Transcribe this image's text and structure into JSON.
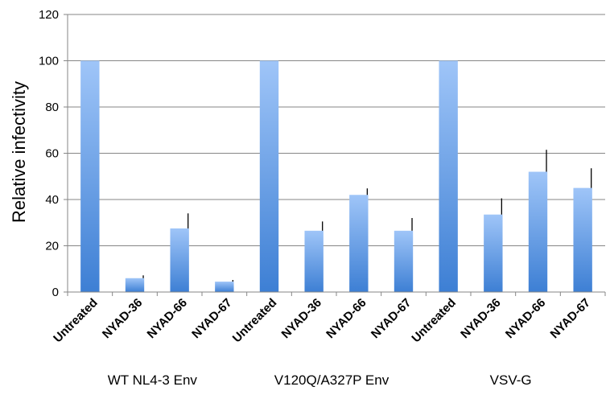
{
  "chart_data": {
    "type": "bar",
    "title": "",
    "xlabel": "",
    "ylabel": "Relative infectivity",
    "ylim": [
      0,
      120
    ],
    "yticks": [
      0,
      20,
      40,
      60,
      80,
      100,
      120
    ],
    "grid": true,
    "legend": "none",
    "bar_color_top": "#9fc5f8",
    "bar_color_bottom": "#3d7fd4",
    "groups": [
      {
        "label": "WT NL4-3 Env",
        "categories": [
          "Untreated",
          "NYAD-36",
          "NYAD-66",
          "NYAD-67"
        ],
        "values": [
          100,
          6,
          27.5,
          4.5
        ],
        "errors": [
          0,
          1.2,
          6.5,
          0.7
        ]
      },
      {
        "label": "V120Q/A327P Env",
        "categories": [
          "Untreated",
          "NYAD-36",
          "NYAD-66",
          "NYAD-67"
        ],
        "values": [
          100,
          26.5,
          42,
          26.5
        ],
        "errors": [
          0,
          4,
          2.8,
          5.5
        ]
      },
      {
        "label": "VSV-G",
        "categories": [
          "Untreated",
          "NYAD-36",
          "NYAD-66",
          "NYAD-67"
        ],
        "values": [
          100,
          33.5,
          52,
          45
        ],
        "errors": [
          0,
          7,
          9.5,
          8.5
        ]
      }
    ]
  }
}
